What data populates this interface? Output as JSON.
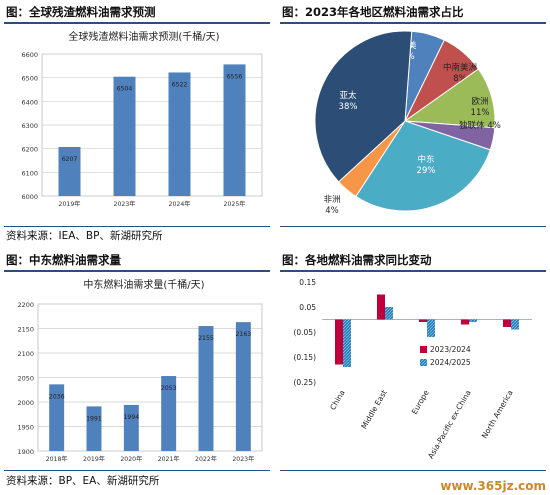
{
  "fig1": {
    "title": "图：全球残渣燃料油需求预测",
    "source": "资料来源：IEA、BP、新湖研究所"
  },
  "fig2": {
    "title": "图：2023年各地区燃料油需求占比"
  },
  "fig3": {
    "title": "图：中东燃料油需求量",
    "source": "资料来源：BP、EA、新湖研究所"
  },
  "fig4": {
    "title": "图：各地燃料油需求同比变动"
  },
  "watermark": "www.365jz.com",
  "chart_data": [
    {
      "type": "bar",
      "title": "全球残渣燃料油需求预测(千桶/天)",
      "categories": [
        "2019年",
        "2023年",
        "2024年",
        "2025年"
      ],
      "values": [
        6207,
        6504,
        6522,
        6556
      ],
      "data_labels": [
        "6207",
        "6504",
        "6522",
        "6556"
      ],
      "ylim": [
        6000,
        6600
      ],
      "yticks": [
        "6000",
        "6100",
        "6200",
        "6300",
        "6400",
        "6500",
        "6600"
      ],
      "bar_color": "#4f81bd",
      "grid": true
    },
    {
      "type": "pie",
      "slices": [
        {
          "label": "北美",
          "value": 6,
          "pct": "6%",
          "color": "#4f81bd"
        },
        {
          "label": "中南美洲",
          "value": 8,
          "pct": "8%",
          "color": "#c0504d"
        },
        {
          "label": "欧洲",
          "value": 11,
          "pct": "11%",
          "color": "#9bbb59"
        },
        {
          "label": "独联体",
          "value": 4,
          "pct": "4%",
          "color": "#8064a2"
        },
        {
          "label": "中东",
          "value": 29,
          "pct": "29%",
          "color": "#4bacc6"
        },
        {
          "label": "非洲",
          "value": 4,
          "pct": "4%",
          "color": "#f79646"
        },
        {
          "label": "亚太",
          "value": 38,
          "pct": "38%",
          "color": "#2c4d75"
        }
      ]
    },
    {
      "type": "bar",
      "title": "中东燃料油需求量(千桶/天)",
      "categories": [
        "2018年",
        "2019年",
        "2020年",
        "2021年",
        "2022年",
        "2023年"
      ],
      "values": [
        2036,
        1991,
        1994,
        2053,
        2155,
        2163
      ],
      "data_labels": [
        "2036",
        "1991",
        "1994",
        "2053",
        "2155",
        "2163"
      ],
      "ylim": [
        1900,
        2200
      ],
      "yticks": [
        "1900",
        "1950",
        "2000",
        "2050",
        "2100",
        "2150",
        "2200"
      ],
      "bar_color": "#4f81bd",
      "grid": true
    },
    {
      "type": "bar",
      "categories": [
        "China",
        "Middle East",
        "Europe",
        "Asia-Pacific ex-China",
        "North America"
      ],
      "series": [
        {
          "name": "2023/2024",
          "values": [
            -0.18,
            0.1,
            -0.01,
            -0.02,
            -0.03
          ],
          "color": "#c0003c"
        },
        {
          "name": "2024/2025",
          "values": [
            -0.19,
            0.05,
            -0.07,
            -0.01,
            -0.04
          ],
          "color": "#1f7ab8"
        }
      ],
      "ylim": [
        -0.25,
        0.15
      ],
      "yticks": [
        "0.15",
        "0.05",
        "(0.05)",
        "(0.15)",
        "(0.25)"
      ],
      "legend": "lower-right",
      "grid": false
    }
  ]
}
